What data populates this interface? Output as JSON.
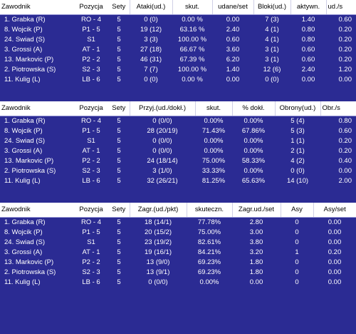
{
  "attack": {
    "headers": [
      "Zawodnik",
      "Pozycja",
      "Sety",
      "Ataki(ud.)",
      "skut.",
      "udane/set",
      "Bloki(ud.)",
      "aktywn.",
      "ud./s"
    ],
    "rows": [
      [
        "1. Grabka (R)",
        "RO - 4",
        "5",
        "0 (0)",
        "0.00 %",
        "0.00",
        "7 (3)",
        "1.40",
        "0.60"
      ],
      [
        "8. Wojcik (P)",
        "P1 - 5",
        "5",
        "19 (12)",
        "63.16 %",
        "2.40",
        "4 (1)",
        "0.80",
        "0.20"
      ],
      [
        "24. Swiad (S)",
        "S1",
        "5",
        "3 (3)",
        "100.00 %",
        "0.60",
        "4 (1)",
        "0.80",
        "0.20"
      ],
      [
        "3. Grossi (A)",
        "AT - 1",
        "5",
        "27 (18)",
        "66.67 %",
        "3.60",
        "3 (1)",
        "0.60",
        "0.20"
      ],
      [
        "13. Markovic (P)",
        "P2 - 2",
        "5",
        "46 (31)",
        "67.39 %",
        "6.20",
        "3 (1)",
        "0.60",
        "0.20"
      ],
      [
        "2. Piotrowska (S)",
        "S2 - 3",
        "5",
        "7 (7)",
        "100.00 %",
        "1.40",
        "12 (6)",
        "2.40",
        "1.20"
      ],
      [
        "11. Kulig (L)",
        "LB - 6",
        "5",
        "0 (0)",
        "0.00 %",
        "0.00",
        "0 (0)",
        "0.00",
        "0.00"
      ]
    ]
  },
  "reception": {
    "headers": [
      "Zawodnik",
      "Pozycja",
      "Sety",
      "Przyj.(ud./dokł.)",
      "skut.",
      "% dokł.",
      "Obrony(ud.)",
      "Obr./s"
    ],
    "rows": [
      [
        "1. Grabka (R)",
        "RO - 4",
        "5",
        "0 (0/0)",
        "0.00%",
        "0.00%",
        "5 (4)",
        "0.80"
      ],
      [
        "8. Wojcik (P)",
        "P1 - 5",
        "5",
        "28 (20/19)",
        "71.43%",
        "67.86%",
        "5 (3)",
        "0.60"
      ],
      [
        "24. Swiad (S)",
        "S1",
        "5",
        "0 (0/0)",
        "0.00%",
        "0.00%",
        "1 (1)",
        "0.20"
      ],
      [
        "3. Grossi (A)",
        "AT - 1",
        "5",
        "0 (0/0)",
        "0.00%",
        "0.00%",
        "2 (1)",
        "0.20"
      ],
      [
        "13. Markovic (P)",
        "P2 - 2",
        "5",
        "24 (18/14)",
        "75.00%",
        "58.33%",
        "4 (2)",
        "0.40"
      ],
      [
        "2. Piotrowska (S)",
        "S2 - 3",
        "5",
        "3 (1/0)",
        "33.33%",
        "0.00%",
        "0 (0)",
        "0.00"
      ],
      [
        "11. Kulig (L)",
        "LB - 6",
        "5",
        "32 (26/21)",
        "81.25%",
        "65.63%",
        "14 (10)",
        "2.00"
      ]
    ]
  },
  "serve": {
    "headers": [
      "Zawodnik",
      "Pozycja",
      "Sety",
      "Zagr.(ud./pkt)",
      "skuteczn.",
      "Zagr.ud./set",
      "Asy",
      "Asy/set"
    ],
    "rows": [
      [
        "1. Grabka (R)",
        "RO - 4",
        "5",
        "18 (14/1)",
        "77.78%",
        "2.80",
        "0",
        "0.00"
      ],
      [
        "8. Wojcik (P)",
        "P1 - 5",
        "5",
        "20 (15/2)",
        "75.00%",
        "3.00",
        "0",
        "0.00"
      ],
      [
        "24. Swiad (S)",
        "S1",
        "5",
        "23 (19/2)",
        "82.61%",
        "3.80",
        "0",
        "0.00"
      ],
      [
        "3. Grossi (A)",
        "AT - 1",
        "5",
        "19 (16/1)",
        "84.21%",
        "3.20",
        "1",
        "0.20"
      ],
      [
        "13. Markovic (P)",
        "P2 - 2",
        "5",
        "13 (9/0)",
        "69.23%",
        "1.80",
        "0",
        "0.00"
      ],
      [
        "2. Piotrowska (S)",
        "S2 - 3",
        "5",
        "13 (9/1)",
        "69.23%",
        "1.80",
        "0",
        "0.00"
      ],
      [
        "11. Kulig (L)",
        "LB - 6",
        "5",
        "0 (0/0)",
        "0.00%",
        "0.00",
        "0",
        "0.00"
      ]
    ]
  }
}
